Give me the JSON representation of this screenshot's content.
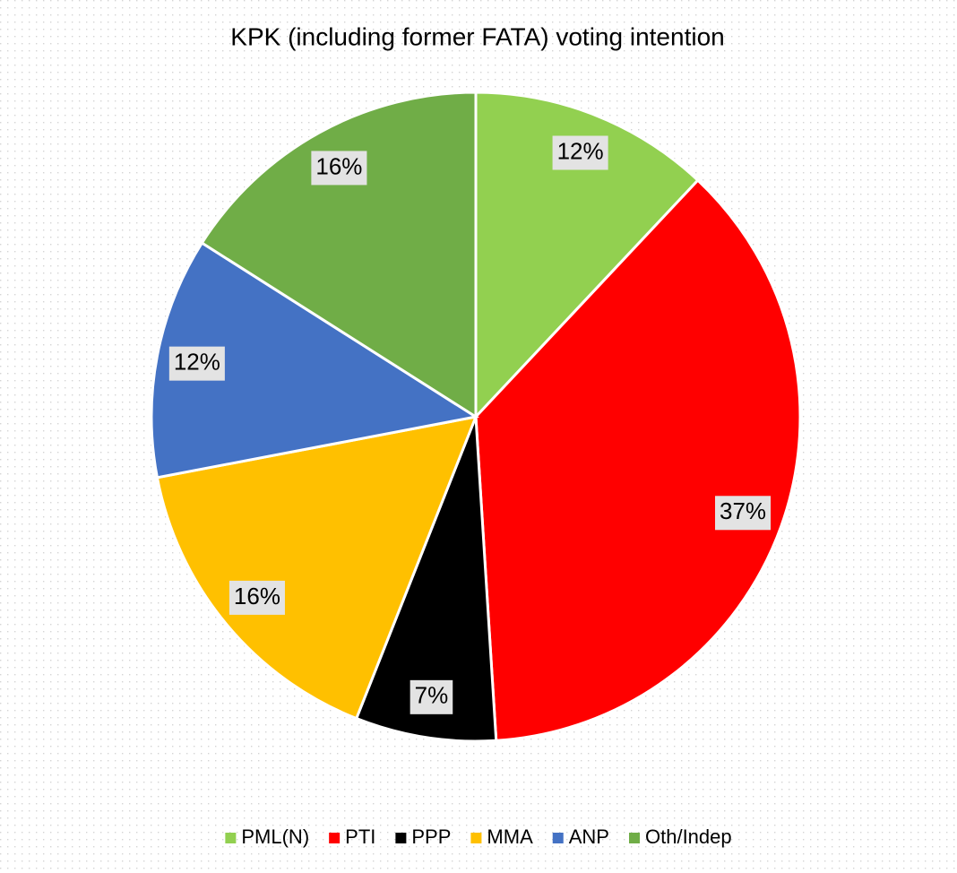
{
  "chart_data": {
    "type": "pie",
    "title": "KPK (including former FATA) voting intention",
    "categories": [
      "PML(N)",
      "PTI",
      "PPP",
      "MMA",
      "ANP",
      "Oth/Indep"
    ],
    "values": [
      12,
      37,
      7,
      16,
      12,
      16
    ],
    "value_labels": [
      "12%",
      "37%",
      "7%",
      "16%",
      "12%",
      "16%"
    ],
    "colors": [
      "#92d050",
      "#ff0000",
      "#000000",
      "#ffc000",
      "#4472c4",
      "#70ad47"
    ],
    "legend": "bottom"
  }
}
